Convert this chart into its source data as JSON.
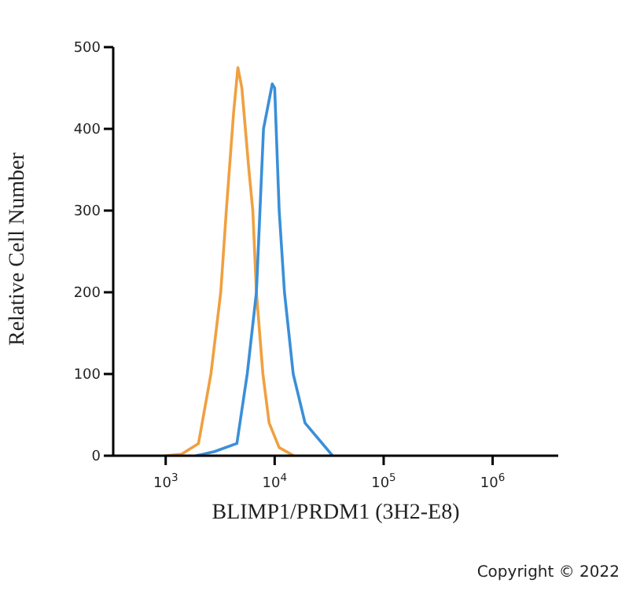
{
  "chart_data": {
    "type": "line",
    "xlabel": "BLIMP1/PRDM1 (3H2-E8)",
    "ylabel": "Relative Cell Number",
    "annotations": [
      "Copyright © 2022"
    ],
    "log": "x",
    "marker": "none",
    "xlim": [
      330,
      4000000
    ],
    "ylim": [
      0,
      500
    ],
    "yticks": [
      0,
      100,
      200,
      300,
      400,
      500
    ],
    "xticks": [
      {
        "value": 1000,
        "label": "10$^{3}$"
      },
      {
        "value": 10000,
        "label": "10$^{4}$"
      },
      {
        "value": 100000,
        "label": "10$^{5}$"
      },
      {
        "value": 1000000,
        "label": "10$^{6}$"
      }
    ],
    "series": [
      {
        "color": "#f0a040",
        "x": [
          1000,
          1400,
          2000,
          2600,
          3200,
          3600,
          4200,
          4600,
          5000,
          5800,
          6300,
          6800,
          7800,
          8900,
          11000,
          15000
        ],
        "values": [
          0,
          2,
          15,
          100,
          200,
          300,
          420,
          475,
          450,
          350,
          300,
          200,
          100,
          40,
          10,
          0
        ]
      },
      {
        "color": "#3a8fd8",
        "x": [
          1900,
          2800,
          4500,
          5600,
          6800,
          7900,
          9500,
          10000,
          11000,
          12300,
          14800,
          19000,
          34000
        ],
        "values": [
          0,
          5,
          15,
          100,
          200,
          400,
          455,
          450,
          300,
          200,
          100,
          40,
          0
        ]
      }
    ]
  }
}
